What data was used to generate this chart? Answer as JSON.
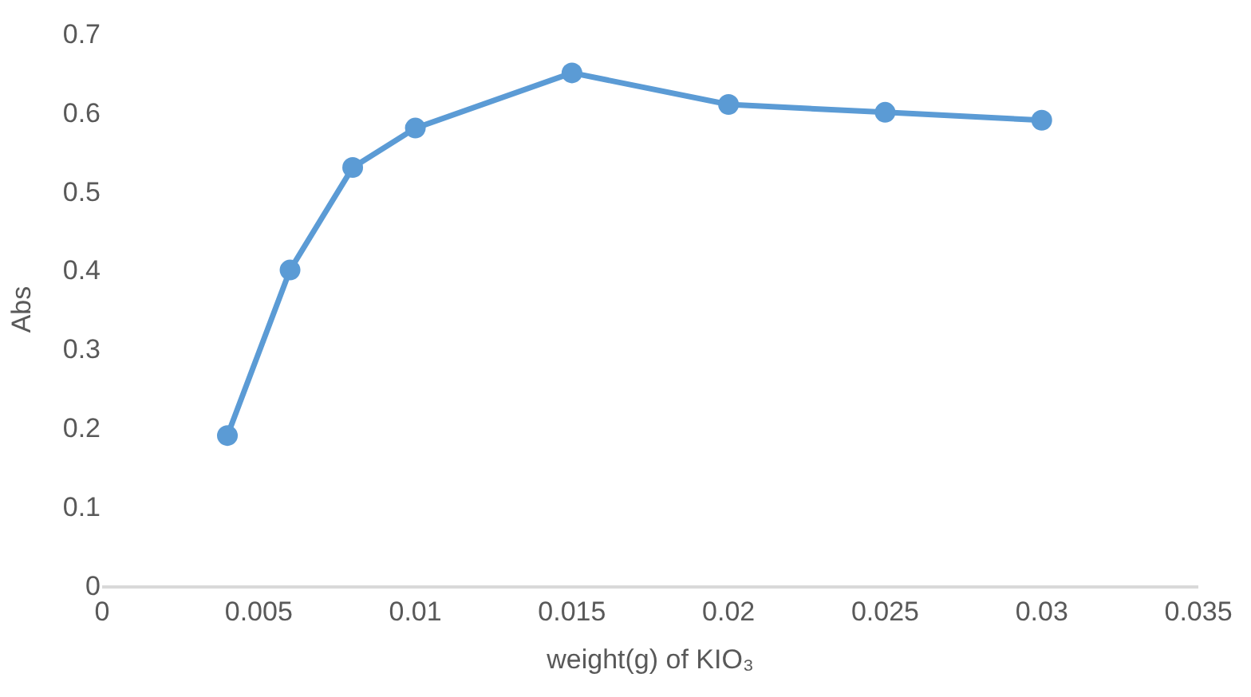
{
  "chart_data": {
    "type": "line",
    "xlabel": "weight(g) of KIO₃",
    "ylabel": "Abs",
    "x": [
      0.004,
      0.006,
      0.008,
      0.01,
      0.015,
      0.02,
      0.025,
      0.03
    ],
    "series": [
      {
        "color": "#5b9bd5",
        "values": [
          0.19,
          0.4,
          0.53,
          0.58,
          0.65,
          0.61,
          0.6,
          0.59
        ]
      }
    ],
    "xlim": [
      0,
      0.035
    ],
    "xticks": [
      0,
      0.005,
      0.01,
      0.015,
      0.02,
      0.025,
      0.03,
      0.035
    ],
    "ylim": [
      0,
      0.7
    ],
    "yticks": [
      0,
      0.1,
      0.2,
      0.3,
      0.4,
      0.5,
      0.6,
      0.7
    ],
    "grid": false,
    "marker": "circle",
    "line_style": "solid"
  }
}
